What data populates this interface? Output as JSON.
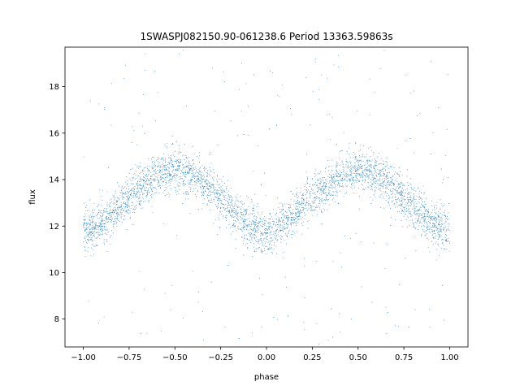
{
  "chart_data": {
    "type": "scatter",
    "title": "1SWASPJ082150.90-061238.6 Period 13363.59863s",
    "xlabel": "phase",
    "ylabel": "flux",
    "xlim": [
      -1.1,
      1.1
    ],
    "ylim": [
      6.8,
      19.7
    ],
    "x_ticks": [
      -1.0,
      -0.75,
      -0.5,
      -0.25,
      0.0,
      0.25,
      0.5,
      0.75,
      1.0
    ],
    "x_tick_labels": [
      "−1.00",
      "−0.75",
      "−0.50",
      "−0.25",
      "0.00",
      "0.25",
      "0.50",
      "0.75",
      "1.00"
    ],
    "y_ticks": [
      8,
      10,
      12,
      14,
      16,
      18
    ],
    "y_tick_labels": [
      "8",
      "10",
      "12",
      "14",
      "16",
      "18"
    ],
    "grid": false,
    "legend": "none",
    "marker_color": "#1f77b4",
    "series": [
      {
        "curve_samples": {
          "phase": [
            -1.0,
            -0.9,
            -0.8,
            -0.7,
            -0.6,
            -0.5,
            -0.4,
            -0.3,
            -0.2,
            -0.1,
            0.0,
            0.1,
            0.2,
            0.3,
            0.4,
            0.5,
            0.6,
            0.7,
            0.8,
            0.9,
            1.0
          ],
          "flux": [
            11.7,
            12.1,
            12.9,
            13.6,
            14.2,
            14.4,
            14.2,
            13.6,
            12.8,
            12.1,
            11.6,
            12.1,
            12.9,
            13.6,
            14.2,
            14.4,
            14.2,
            13.6,
            12.8,
            12.1,
            11.7
          ]
        },
        "phase_range": [
          -1.0,
          1.0
        ],
        "typical_scatter": 0.45
      }
    ]
  }
}
